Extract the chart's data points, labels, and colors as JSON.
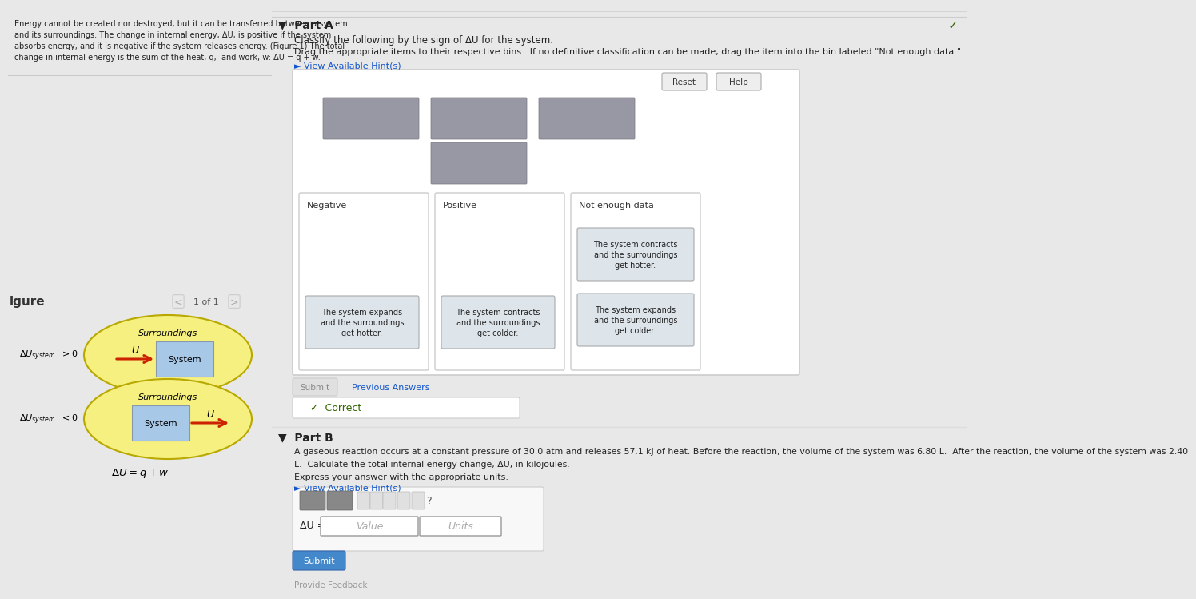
{
  "bg_color": "#e8e8e8",
  "left_panel_color": "#cce8f0",
  "text_block_lines": [
    "Energy cannot be created nor destroyed, but it can be transferred between a system",
    "and its surroundings. The change in internal energy, ΔU, is positive if the system",
    "absorbs energy, and it is negative if the system releases energy. (Figure 1) The total",
    "change in internal energy is the sum of the heat, q,  and work, w: ΔU = q + w."
  ],
  "part_a_title": "Part A",
  "part_a_classify": "Classify the following by the sign of ΔU for the system.",
  "part_a_drag": "Drag the appropriate items to their respective bins.  If no definitive classification can be made, drag the item into the bin labeled \"Not enough data.\"",
  "view_hint": "► View Available Hint(s)",
  "reset_btn": "Reset",
  "help_btn": "Help",
  "bin_labels": [
    "Negative",
    "Positive",
    "Not enough data"
  ],
  "bin_items_negative": "The system expands\nand the surroundings\nget hotter.",
  "bin_items_positive": "The system contracts\nand the surroundings\nget colder.",
  "bin_items_ned1": "The system contracts\nand the surroundings\nget hotter.",
  "bin_items_ned2": "The system expands\nand the surroundings\nget colder.",
  "submit_btn": "Submit",
  "previous_answers": "Previous Answers",
  "correct_text": "✓  Correct",
  "part_b_title": "Part B",
  "part_b_line1": "A gaseous reaction occurs at a constant pressure of 30.0 atm and releases 57.1 kJ of heat. Before the reaction, the volume of the system was 6.80 L.  After the reaction, the volume of the system was 2.40",
  "part_b_line2": "L.  Calculate the total internal energy change, ΔU, in kilojoules.",
  "express_answer": "Express your answer with the appropriate units.",
  "view_hint2": "► View Available Hint(s)",
  "delta_u_label": "ΔU =",
  "value_placeholder": "Value",
  "units_placeholder": "Units",
  "submit_btn2": "Submit",
  "figure_label": "igure",
  "nav_text": "1 of 1",
  "surr_label": "Surroundings",
  "sys_label": "System",
  "provide_feedback": "Provide Feedback",
  "ellipse_face_color": "#f5f080",
  "ellipse_edge_color": "#b8a800",
  "sys_box_color": "#a8c8e8",
  "arrow_color": "#cc2200",
  "checkmark_color": "#336600",
  "hint_color": "#1155cc",
  "gray_box_color": "#9898a4",
  "right_bg": "#f0f0f0",
  "white": "#ffffff",
  "part_a_bg": "#f8f8f8",
  "submit_color_b": "#4488cc"
}
